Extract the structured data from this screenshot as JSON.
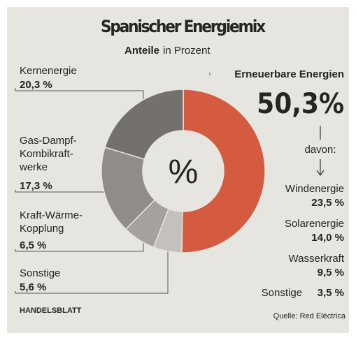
{
  "chart_data": {
    "type": "donut",
    "title": "Spanischer Energiemix",
    "subtitle_bold": "Anteile",
    "subtitle": "in Prozent",
    "center_label": "%",
    "categories": [
      "Erneuerbare Energien",
      "Sonstige",
      "Kraft-Wärme-\nKopplung",
      "Gas-Dampf-\nKombikraft-\nwerke",
      "Kernenergie"
    ],
    "values": [
      50.3,
      5.6,
      6.5,
      17.3,
      20.3
    ],
    "value_labels": [
      "50,3%",
      "5,6 %",
      "6,5 %",
      "17,3 %",
      "20,3 %"
    ],
    "colors": [
      "#d45a40",
      "#c4c1bc",
      "#a5a29e",
      "#8f8c89",
      "#73706d"
    ],
    "breakdown_intro": "davon:",
    "breakdown": {
      "categories": [
        "Windenergie",
        "Solarenergie",
        "Wasserkraft",
        "Sonstige"
      ],
      "values": [
        23.5,
        14.0,
        9.5,
        3.5
      ],
      "value_labels": [
        "23,5 %",
        "14,0 %",
        "9,5 %",
        "3,5 %"
      ]
    },
    "publisher": "HANDELSBLATT",
    "source": "Quelle: Red Eléctrica"
  }
}
